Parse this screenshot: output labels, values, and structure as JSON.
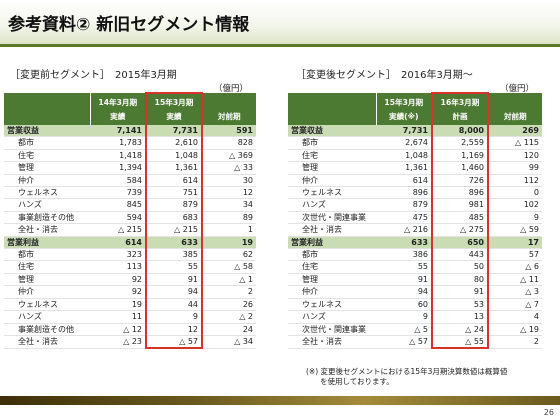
{
  "title": "参考資料② 新旧セグメント情報",
  "old": {
    "section": "［変更前セグメント］　2015年3月期",
    "unit": "（億円）",
    "headers": {
      "col1": [
        "14年3月期",
        "実績"
      ],
      "col2": [
        "15年3月期",
        "実績"
      ],
      "col3": [
        "",
        "対前期"
      ]
    },
    "rows": [
      {
        "label": "営業収益",
        "v1": "7,141",
        "v2": "7,731",
        "v3": "591",
        "total": true
      },
      {
        "label": "都市",
        "v1": "1,783",
        "v2": "2,610",
        "v3": "828"
      },
      {
        "label": "住宅",
        "v1": "1,418",
        "v2": "1,048",
        "v3": "△ 369"
      },
      {
        "label": "管理",
        "v1": "1,394",
        "v2": "1,361",
        "v3": "△ 33"
      },
      {
        "label": "仲介",
        "v1": "584",
        "v2": "614",
        "v3": "30"
      },
      {
        "label": "ウェルネス",
        "v1": "739",
        "v2": "751",
        "v3": "12"
      },
      {
        "label": "ハンズ",
        "v1": "845",
        "v2": "879",
        "v3": "34"
      },
      {
        "label": "事業創造その他",
        "v1": "594",
        "v2": "683",
        "v3": "89"
      },
      {
        "label": "全社・消去",
        "v1": "△ 215",
        "v2": "△ 215",
        "v3": "1"
      },
      {
        "label": "営業利益",
        "v1": "614",
        "v2": "633",
        "v3": "19",
        "total": true
      },
      {
        "label": "都市",
        "v1": "323",
        "v2": "385",
        "v3": "62"
      },
      {
        "label": "住宅",
        "v1": "113",
        "v2": "55",
        "v3": "△ 58"
      },
      {
        "label": "管理",
        "v1": "92",
        "v2": "91",
        "v3": "△ 1"
      },
      {
        "label": "仲介",
        "v1": "92",
        "v2": "94",
        "v3": "2"
      },
      {
        "label": "ウェルネス",
        "v1": "19",
        "v2": "44",
        "v3": "26"
      },
      {
        "label": "ハンズ",
        "v1": "11",
        "v2": "9",
        "v3": "△ 2"
      },
      {
        "label": "事業創造その他",
        "v1": "△ 12",
        "v2": "12",
        "v3": "24"
      },
      {
        "label": "全社・消去",
        "v1": "△ 23",
        "v2": "△ 57",
        "v3": "△ 34"
      }
    ]
  },
  "new": {
    "section": "［変更後セグメント］　2016年3月期～",
    "unit": "（億円）",
    "headers": {
      "col1": [
        "15年3月期",
        "実績(※)"
      ],
      "col2": [
        "16年3月期",
        "計画"
      ],
      "col3": [
        "",
        "対前期"
      ]
    },
    "rows": [
      {
        "label": "営業収益",
        "v1": "7,731",
        "v2": "8,000",
        "v3": "269",
        "total": true
      },
      {
        "label": "都市",
        "v1": "2,674",
        "v2": "2,559",
        "v3": "△ 115"
      },
      {
        "label": "住宅",
        "v1": "1,048",
        "v2": "1,169",
        "v3": "120"
      },
      {
        "label": "管理",
        "v1": "1,361",
        "v2": "1,460",
        "v3": "99"
      },
      {
        "label": "仲介",
        "v1": "614",
        "v2": "726",
        "v3": "112"
      },
      {
        "label": "ウェルネス",
        "v1": "896",
        "v2": "896",
        "v3": "0"
      },
      {
        "label": "ハンズ",
        "v1": "879",
        "v2": "981",
        "v3": "102"
      },
      {
        "label": "次世代・関連事業",
        "v1": "475",
        "v2": "485",
        "v3": "9"
      },
      {
        "label": "全社・消去",
        "v1": "△ 216",
        "v2": "△ 275",
        "v3": "△ 59"
      },
      {
        "label": "営業利益",
        "v1": "633",
        "v2": "650",
        "v3": "17",
        "total": true
      },
      {
        "label": "都市",
        "v1": "386",
        "v2": "443",
        "v3": "57"
      },
      {
        "label": "住宅",
        "v1": "55",
        "v2": "50",
        "v3": "△ 6"
      },
      {
        "label": "管理",
        "v1": "91",
        "v2": "80",
        "v3": "△ 11"
      },
      {
        "label": "仲介",
        "v1": "94",
        "v2": "91",
        "v3": "△ 3"
      },
      {
        "label": "ウェルネス",
        "v1": "60",
        "v2": "53",
        "v3": "△ 7"
      },
      {
        "label": "ハンズ",
        "v1": "9",
        "v2": "13",
        "v3": "4"
      },
      {
        "label": "次世代・関連事業",
        "v1": "△ 5",
        "v2": "△ 24",
        "v3": "△ 19"
      },
      {
        "label": "全社・消去",
        "v1": "△ 57",
        "v2": "△ 55",
        "v3": "2"
      }
    ]
  },
  "note": [
    "(※) 変更後セグメントにおける15年3月期決算数値は概算値",
    "を使用しております。"
  ],
  "page_number": "26",
  "colors": {
    "header_green": "#4d7a32",
    "total_row": "#c9dcb4",
    "highlight_red": "#d9322b"
  }
}
